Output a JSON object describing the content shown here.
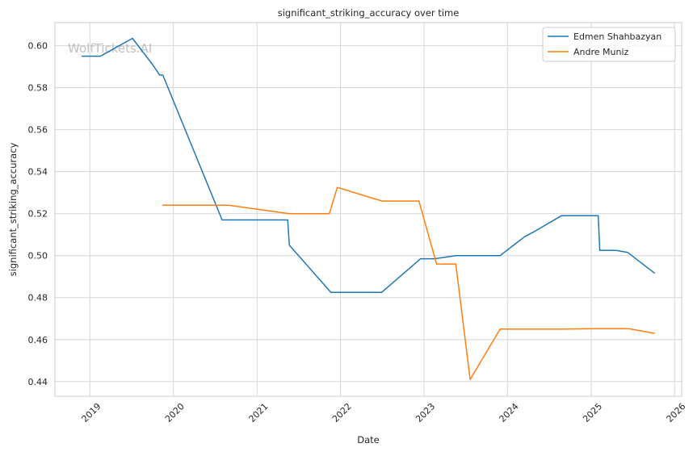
{
  "chart_data": {
    "type": "line",
    "title": "significant_striking_accuracy over time",
    "xlabel": "Date",
    "ylabel": "significant_striking_accuracy",
    "watermark": "WolfTickets.AI",
    "xlim": [
      "2018-08-01",
      "2026-02-01"
    ],
    "ylim": [
      0.433,
      0.611
    ],
    "x_ticks": [
      "2019-01-01",
      "2020-01-01",
      "2021-01-01",
      "2022-01-01",
      "2023-01-01",
      "2024-01-01",
      "2025-01-01",
      "2026-01-01"
    ],
    "x_tick_labels": [
      "2019",
      "2020",
      "2021",
      "2022",
      "2023",
      "2024",
      "2025",
      "2026"
    ],
    "y_ticks": [
      0.44,
      0.46,
      0.48,
      0.5,
      0.52,
      0.54,
      0.56,
      0.58,
      0.6
    ],
    "y_tick_labels": [
      "0.44",
      "0.46",
      "0.48",
      "0.50",
      "0.52",
      "0.54",
      "0.56",
      "0.58",
      "0.60"
    ],
    "grid": true,
    "legend_position": "top-right",
    "series": [
      {
        "name": "Edmen Shahbazyan",
        "color": "#1f77b4",
        "points": [
          [
            "2018-11-28",
            0.595
          ],
          [
            "2019-02-16",
            0.595
          ],
          [
            "2019-07-06",
            0.6035
          ],
          [
            "2019-10-02",
            0.591
          ],
          [
            "2019-11-02",
            0.586
          ],
          [
            "2019-11-16",
            0.586
          ],
          [
            "2020-08-01",
            0.517
          ],
          [
            "2021-05-15",
            0.517
          ],
          [
            "2021-05-22",
            0.505
          ],
          [
            "2021-11-20",
            0.4825
          ],
          [
            "2022-06-30",
            0.4825
          ],
          [
            "2022-12-17",
            0.4985
          ],
          [
            "2023-02-16",
            0.4985
          ],
          [
            "2023-05-20",
            0.5
          ],
          [
            "2023-11-30",
            0.5
          ],
          [
            "2024-03-16",
            0.509
          ],
          [
            "2024-04-20",
            0.511
          ],
          [
            "2024-08-24",
            0.519
          ],
          [
            "2025-02-01",
            0.519
          ],
          [
            "2025-02-08",
            0.5025
          ],
          [
            "2025-04-20",
            0.5025
          ],
          [
            "2025-06-10",
            0.5015
          ],
          [
            "2025-10-04",
            0.4918
          ]
        ]
      },
      {
        "name": "Andre Muniz",
        "color": "#ff7f0e",
        "points": [
          [
            "2019-11-16",
            0.524
          ],
          [
            "2020-08-29",
            0.524
          ],
          [
            "2021-05-22",
            0.52
          ],
          [
            "2021-11-13",
            0.52
          ],
          [
            "2021-12-18",
            0.5325
          ],
          [
            "2022-07-02",
            0.526
          ],
          [
            "2022-12-10",
            0.526
          ],
          [
            "2023-02-25",
            0.496
          ],
          [
            "2023-05-20",
            0.496
          ],
          [
            "2023-07-22",
            0.441
          ],
          [
            "2023-11-30",
            0.465
          ],
          [
            "2024-08-31",
            0.465
          ],
          [
            "2025-01-15",
            0.4652
          ],
          [
            "2025-06-14",
            0.4652
          ],
          [
            "2025-10-04",
            0.463
          ]
        ]
      }
    ]
  }
}
